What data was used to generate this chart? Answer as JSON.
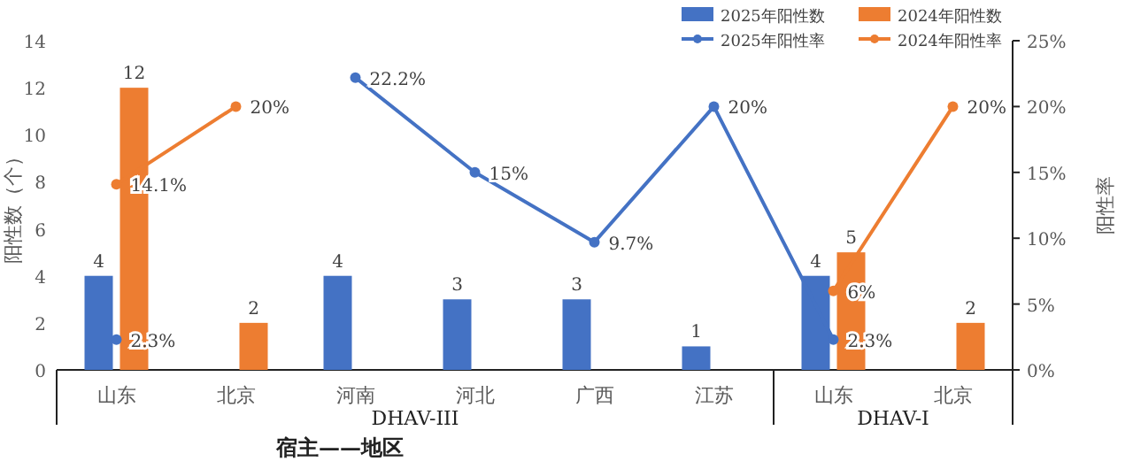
{
  "chart_data": {
    "type": "bar",
    "xlabel": "宿主——地区",
    "ylabel": "阳性数（个）",
    "y2label": "阳性率",
    "categories": [
      "山东",
      "北京",
      "河南",
      "河北",
      "广西",
      "江苏",
      "山东",
      "北京"
    ],
    "series": [
      {
        "name": "2025年阳性数",
        "color": "#4472c4",
        "values": [
          4,
          null,
          4,
          3,
          3,
          1,
          4,
          null
        ],
        "value_labels": [
          "4",
          null,
          "4",
          "3",
          "3",
          "1",
          "4",
          null
        ]
      },
      {
        "name": "2024年阳性数",
        "color": "#ed7d31",
        "values": [
          12,
          2,
          null,
          null,
          null,
          null,
          5,
          2
        ],
        "value_labels": [
          "12",
          "2",
          null,
          null,
          null,
          null,
          "5",
          "2"
        ]
      },
      {
        "name": "2025年阳性率",
        "type": "line",
        "axis": "y2",
        "color": "#4472c4",
        "values": [
          2.3,
          null,
          22.2,
          15,
          9.7,
          20,
          2.3,
          null
        ],
        "value_labels": [
          "2.3%",
          null,
          "22.2%",
          "15%",
          "9.7%",
          "20%",
          "2.3%",
          null
        ]
      },
      {
        "name": "2024年阳性率",
        "type": "line",
        "axis": "y2",
        "color": "#ed7d31",
        "values": [
          14.1,
          20,
          null,
          null,
          null,
          null,
          6,
          20
        ],
        "value_labels": [
          "14.1%",
          "20%",
          null,
          null,
          null,
          null,
          "6%",
          "20%"
        ]
      }
    ],
    "ylim": [
      0,
      14
    ],
    "yticks": [
      0,
      2,
      4,
      6,
      8,
      10,
      12,
      14
    ],
    "y2lim": [
      0,
      25
    ],
    "y2ticks": [
      {
        "value": 0,
        "label": "0%"
      },
      {
        "value": 5,
        "label": "5%"
      },
      {
        "value": 10,
        "label": "10%"
      },
      {
        "value": 15,
        "label": "15%"
      },
      {
        "value": 20,
        "label": "20%"
      },
      {
        "value": 25,
        "label": "25%"
      }
    ],
    "annotations": [
      "DHAV-III",
      "DHAV-I"
    ],
    "marker": "circle",
    "legend": "top right",
    "grid": false
  }
}
